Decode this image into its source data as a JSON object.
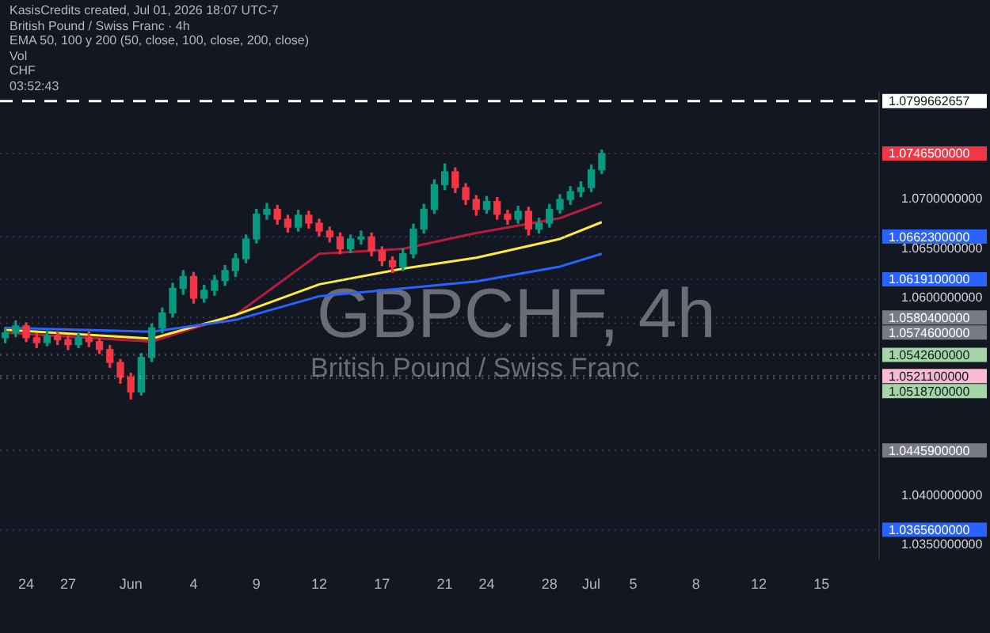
{
  "chart_data": {
    "type": "candlestick",
    "title": "GBPCHF, 4h",
    "subtitle": "British Pound / Swiss Franc",
    "annotations": [
      "KasisCredits created, Jul 01, 2026 18:07 UTC-7",
      "British Pound / Swiss Franc · 4h",
      "EMA 50, 100 y 200 (50, close, 100, close, 200, close)",
      "Vol",
      "CHF",
      "03:52:43"
    ],
    "categories": [
      null,
      null,
      "24",
      null,
      null,
      null,
      "27",
      null,
      null,
      null,
      null,
      null,
      "Jun",
      null,
      null,
      null,
      null,
      null,
      "4",
      null,
      null,
      null,
      null,
      null,
      "9",
      null,
      null,
      null,
      null,
      null,
      "12",
      null,
      null,
      null,
      null,
      null,
      "17",
      null,
      null,
      null,
      null,
      null,
      "21",
      null,
      null,
      null,
      "24",
      null,
      null,
      null,
      null,
      null,
      "28",
      null,
      null,
      null,
      "Jul",
      null,
      null,
      null,
      "5",
      null,
      null,
      null,
      null,
      null,
      "8",
      null,
      null,
      null,
      null,
      null,
      "12",
      null,
      null,
      null,
      null,
      null,
      "15",
      null,
      null,
      null,
      null,
      null
    ],
    "ohlc": [
      [
        1.056,
        1.057,
        1.0555,
        1.0565
      ],
      [
        1.0565,
        1.0577,
        1.0561,
        1.0572
      ],
      [
        1.0572,
        1.0575,
        1.0556,
        1.056
      ],
      [
        1.056,
        1.0564,
        1.055,
        1.0555
      ],
      [
        1.0555,
        1.0567,
        1.0552,
        1.0562
      ],
      [
        1.0562,
        1.0566,
        1.0553,
        1.0558
      ],
      [
        1.0558,
        1.0562,
        1.0548,
        1.0553
      ],
      [
        1.0553,
        1.0565,
        1.055,
        1.056
      ],
      [
        1.056,
        1.0566,
        1.0551,
        1.0556
      ],
      [
        1.0556,
        1.0559,
        1.0544,
        1.0548
      ],
      [
        1.0548,
        1.0552,
        1.053,
        1.0535
      ],
      [
        1.0535,
        1.0538,
        1.0514,
        1.052
      ],
      [
        1.052,
        1.0524,
        1.0498,
        1.0505
      ],
      [
        1.0505,
        1.0544,
        1.0502,
        1.054
      ],
      [
        1.054,
        1.0574,
        1.0536,
        1.057
      ],
      [
        1.057,
        1.059,
        1.0565,
        1.0585
      ],
      [
        1.0585,
        1.0615,
        1.0581,
        1.061
      ],
      [
        1.061,
        1.0628,
        1.0604,
        1.0622
      ],
      [
        1.0622,
        1.0626,
        1.0595,
        1.06
      ],
      [
        1.06,
        1.0613,
        1.0596,
        1.0608
      ],
      [
        1.0608,
        1.0623,
        1.0603,
        1.0618
      ],
      [
        1.0618,
        1.0633,
        1.0613,
        1.0628
      ],
      [
        1.0628,
        1.0645,
        1.0622,
        1.064
      ],
      [
        1.064,
        1.0664,
        1.0636,
        1.066
      ],
      [
        1.066,
        1.069,
        1.0656,
        1.0685
      ],
      [
        1.0685,
        1.0696,
        1.068,
        1.069
      ],
      [
        1.069,
        1.0694,
        1.0675,
        1.068
      ],
      [
        1.068,
        1.0684,
        1.0667,
        1.0672
      ],
      [
        1.0672,
        1.0689,
        1.0668,
        1.0684
      ],
      [
        1.0684,
        1.0688,
        1.0671,
        1.0676
      ],
      [
        1.0676,
        1.068,
        1.0663,
        1.0668
      ],
      [
        1.0668,
        1.0672,
        1.0657,
        1.0662
      ],
      [
        1.0662,
        1.0666,
        1.0645,
        1.065
      ],
      [
        1.065,
        1.0664,
        1.0646,
        1.066
      ],
      [
        1.066,
        1.0668,
        1.0655,
        1.0662
      ],
      [
        1.0662,
        1.0666,
        1.0643,
        1.0648
      ],
      [
        1.0648,
        1.0652,
        1.0633,
        1.0638
      ],
      [
        1.0638,
        1.0642,
        1.0626,
        1.0632
      ],
      [
        1.0632,
        1.065,
        1.0628,
        1.0645
      ],
      [
        1.0645,
        1.0675,
        1.0641,
        1.067
      ],
      [
        1.067,
        1.0695,
        1.0666,
        1.069
      ],
      [
        1.069,
        1.072,
        1.0686,
        1.0715
      ],
      [
        1.0715,
        1.0736,
        1.071,
        1.0728
      ],
      [
        1.0728,
        1.0732,
        1.0707,
        1.0712
      ],
      [
        1.0712,
        1.0716,
        1.0695,
        1.07
      ],
      [
        1.07,
        1.0704,
        1.0684,
        1.069
      ],
      [
        1.069,
        1.0703,
        1.0686,
        1.0698
      ],
      [
        1.0698,
        1.0702,
        1.068,
        1.0685
      ],
      [
        1.0685,
        1.0689,
        1.0675,
        1.068
      ],
      [
        1.068,
        1.0693,
        1.0676,
        1.0688
      ],
      [
        1.0688,
        1.0692,
        1.0664,
        1.067
      ],
      [
        1.067,
        1.0681,
        1.0666,
        1.0676
      ],
      [
        1.0676,
        1.0695,
        1.0672,
        1.069
      ],
      [
        1.069,
        1.0705,
        1.0686,
        1.07
      ],
      [
        1.07,
        1.0713,
        1.0695,
        1.0708
      ],
      [
        1.0708,
        1.0718,
        1.0703,
        1.0712
      ],
      [
        1.0712,
        1.0735,
        1.0708,
        1.073
      ],
      [
        1.073,
        1.075,
        1.0726,
        1.07465
      ],
      null,
      null,
      null,
      null,
      null,
      null,
      null,
      null,
      null,
      null,
      null,
      null,
      null,
      null,
      null,
      null,
      null,
      null,
      null,
      null,
      null,
      null,
      null,
      null,
      null,
      null
    ],
    "colors": [
      "#089981",
      "#089981",
      "#f23645",
      "#f23645",
      "#089981",
      "#f23645",
      "#f23645",
      "#089981",
      "#f23645",
      "#f23645",
      "#f23645",
      "#f23645",
      "#f23645",
      "#089981",
      "#089981",
      "#089981",
      "#089981",
      "#089981",
      "#f23645",
      "#089981",
      "#089981",
      "#089981",
      "#089981",
      "#089981",
      "#089981",
      "#089981",
      "#f23645",
      "#f23645",
      "#089981",
      "#f23645",
      "#f23645",
      "#f23645",
      "#f23645",
      "#089981",
      "#089981",
      "#f23645",
      "#f23645",
      "#f23645",
      "#089981",
      "#089981",
      "#089981",
      "#089981",
      "#089981",
      "#f23645",
      "#f23645",
      "#f23645",
      "#089981",
      "#f23645",
      "#f23645",
      "#089981",
      "#f23645",
      "#089981",
      "#089981",
      "#089981",
      "#089981",
      "#089981",
      "#089981",
      "#089981",
      null,
      null,
      null,
      null,
      null,
      null,
      null,
      null,
      null,
      null,
      null,
      null,
      null,
      null,
      null,
      null,
      null,
      null,
      null,
      null,
      null,
      null,
      null,
      null,
      null,
      null
    ],
    "series": [
      {
        "type": "line",
        "color": "#2962ff",
        "values": [
          1.057,
          null,
          null,
          null,
          null,
          null,
          null,
          null,
          null,
          null,
          null,
          null,
          null,
          null,
          1.0566,
          null,
          null,
          null,
          null,
          null,
          null,
          null,
          1.0578,
          null,
          null,
          null,
          null,
          null,
          null,
          null,
          1.0602,
          null,
          null,
          null,
          null,
          null,
          null,
          null,
          1.061,
          null,
          null,
          null,
          null,
          null,
          null,
          1.0617,
          null,
          null,
          null,
          null,
          null,
          null,
          null,
          1.0632,
          null,
          null,
          null,
          1.0645,
          null,
          null,
          null,
          null,
          null,
          null,
          null,
          null,
          null,
          null,
          null,
          null,
          null,
          null,
          null,
          null,
          null,
          null,
          null,
          null,
          null,
          null,
          null,
          null,
          null,
          null
        ]
      },
      {
        "type": "line",
        "color": "#ffeb3b",
        "values": [
          1.0568,
          null,
          null,
          null,
          null,
          null,
          null,
          null,
          null,
          null,
          null,
          null,
          null,
          null,
          1.0559,
          null,
          null,
          null,
          null,
          null,
          null,
          null,
          1.0583,
          null,
          null,
          null,
          null,
          null,
          null,
          null,
          1.0614,
          null,
          null,
          null,
          null,
          null,
          null,
          null,
          1.063,
          null,
          null,
          null,
          null,
          null,
          null,
          1.0641,
          null,
          null,
          null,
          null,
          null,
          null,
          null,
          1.066,
          null,
          null,
          null,
          1.0677,
          null,
          null,
          null,
          null,
          null,
          null,
          null,
          null,
          null,
          null,
          null,
          null,
          null,
          null,
          null,
          null,
          null,
          null,
          null,
          null,
          null,
          null,
          null,
          null,
          null,
          null
        ]
      },
      {
        "type": "line",
        "color": "#b71c3c",
        "values": [
          1.0565,
          null,
          null,
          null,
          null,
          null,
          null,
          null,
          null,
          null,
          null,
          null,
          null,
          null,
          1.0556,
          null,
          null,
          null,
          null,
          null,
          null,
          null,
          1.0583,
          null,
          null,
          null,
          null,
          null,
          null,
          null,
          1.0645,
          null,
          null,
          null,
          null,
          null,
          null,
          null,
          1.065,
          null,
          null,
          null,
          null,
          null,
          null,
          1.0666,
          null,
          null,
          null,
          null,
          null,
          null,
          null,
          1.0681,
          null,
          null,
          null,
          1.0697,
          null,
          null,
          null,
          null,
          null,
          null,
          null,
          null,
          null,
          null,
          null,
          null,
          null,
          null,
          null,
          null,
          null,
          null,
          null,
          null,
          null,
          null,
          null,
          null,
          null,
          null
        ]
      }
    ],
    "ylim": [
      1.0336,
      1.0809
    ],
    "yticks": [
      {
        "value": 1.035,
        "label": "1.0350000000"
      },
      {
        "value": 1.04,
        "label": "1.0400000000"
      },
      {
        "value": 1.06,
        "label": "1.0600000000"
      },
      {
        "value": 1.065,
        "label": "1.0650000000"
      },
      {
        "value": 1.07,
        "label": "1.0700000000"
      }
    ],
    "ref_lines": [
      {
        "axis": "y",
        "value": 1.0799662657,
        "label": "1.0799662657",
        "color": "#ffffff",
        "line_style": "dashed"
      },
      {
        "axis": "y",
        "value": 1.07465,
        "label": "1.0746500000",
        "color": "#f23645"
      },
      {
        "axis": "y",
        "value": 1.06623,
        "label": "1.0662300000",
        "color": "#2962ff"
      },
      {
        "axis": "y",
        "value": 1.06191,
        "label": "1.0619100000",
        "color": "#2962ff"
      },
      {
        "axis": "y",
        "value": 1.05804,
        "label": "1.0580400000",
        "color": "#787b86"
      },
      {
        "axis": "y",
        "value": 1.05746,
        "label": "1.0574600000",
        "color": "#787b86"
      },
      {
        "axis": "y",
        "value": 1.05426,
        "label": "1.0542600000",
        "color": "#a5d6a7"
      },
      {
        "axis": "y",
        "value": 1.05211,
        "label": "1.0521100000",
        "color": "#f8bbd0"
      },
      {
        "axis": "y",
        "value": 1.05187,
        "label": "1.0518700000",
        "color": "#a5d6a7"
      },
      {
        "axis": "y",
        "value": 1.04459,
        "label": "1.0445900000",
        "color": "#787b86"
      },
      {
        "axis": "y",
        "value": 1.03656,
        "label": "1.0365600000",
        "color": "#2962ff"
      }
    ]
  }
}
